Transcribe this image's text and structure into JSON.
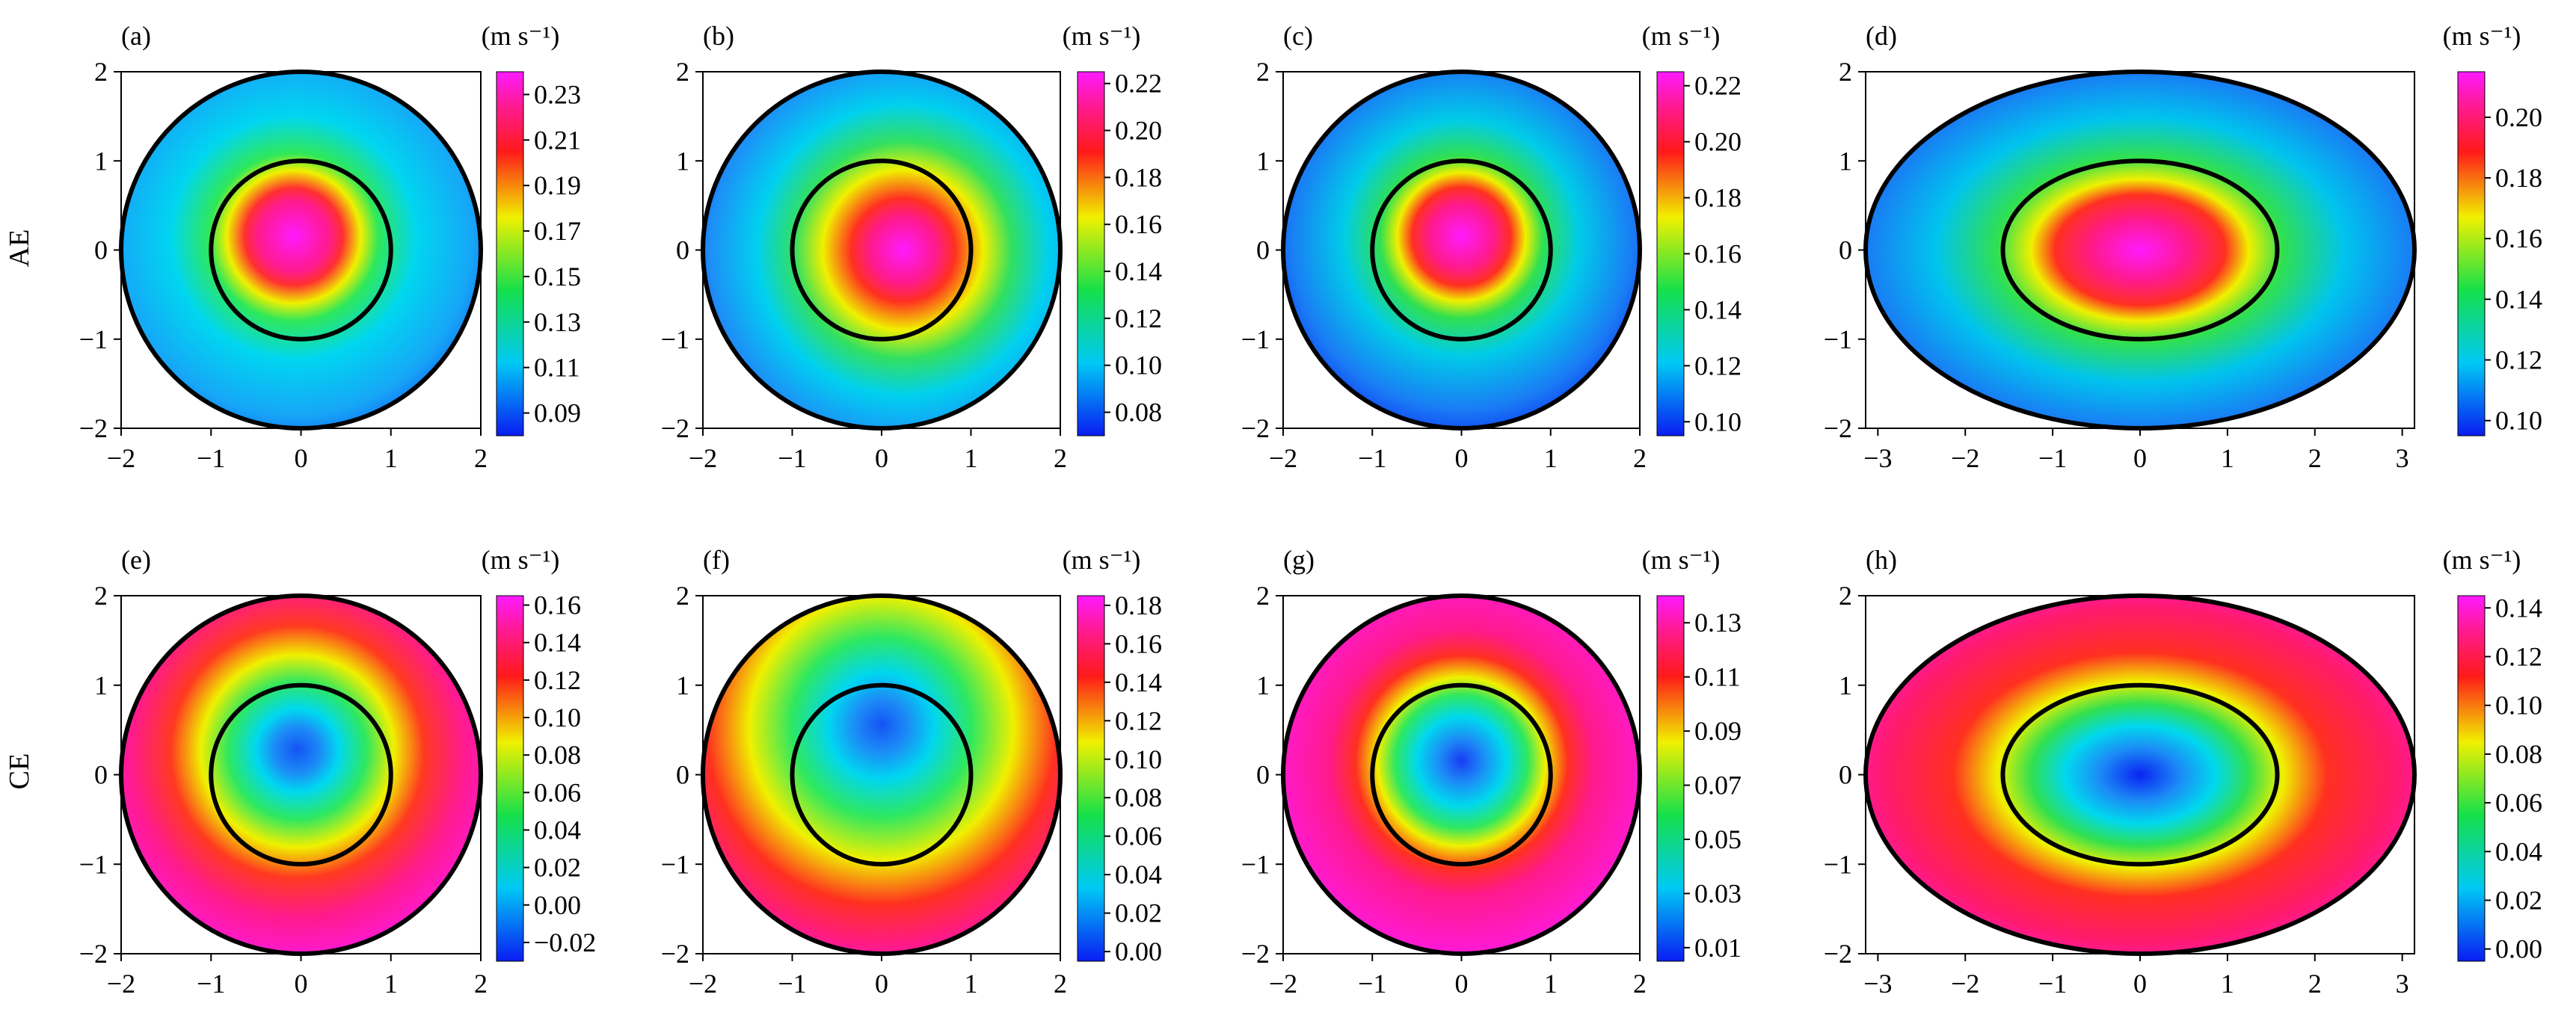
{
  "row_labels": [
    "AE",
    "CE"
  ],
  "colorbar_unit": "(m s⁻¹)",
  "chart_data": [
    {
      "type": "heatmap",
      "panel_label": "(a)",
      "row": 0,
      "shape": "circle",
      "xlim": [
        -2,
        2
      ],
      "ylim": [
        -2,
        2
      ],
      "xticks": [
        "−2",
        "−1",
        "0",
        "1",
        "2"
      ],
      "yticks": [
        "−2",
        "−1",
        "0",
        "1",
        "2"
      ],
      "colorbar_ticks": [
        "0.09",
        "0.11",
        "0.13",
        "0.15",
        "0.17",
        "0.19",
        "0.21",
        "0.23"
      ],
      "colorbar_range": [
        0.08,
        0.24
      ],
      "max_location": [
        -0.1,
        0.1
      ],
      "note": "max inside unit circle; min at lower-right edge"
    },
    {
      "type": "heatmap",
      "panel_label": "(b)",
      "row": 0,
      "shape": "circle",
      "xlim": [
        -2,
        2
      ],
      "ylim": [
        -2,
        2
      ],
      "xticks": [
        "−2",
        "−1",
        "0",
        "1",
        "2"
      ],
      "yticks": [
        "−2",
        "−1",
        "0",
        "1",
        "2"
      ],
      "colorbar_ticks": [
        "0.08",
        "0.10",
        "0.12",
        "0.14",
        "0.16",
        "0.18",
        "0.20",
        "0.22"
      ],
      "colorbar_range": [
        0.07,
        0.225
      ],
      "max_location": [
        0.2,
        0
      ],
      "note": "max at center; tail toward +x; min at upper-left edge"
    },
    {
      "type": "heatmap",
      "panel_label": "(c)",
      "row": 0,
      "shape": "circle",
      "xlim": [
        -2,
        2
      ],
      "ylim": [
        -2,
        2
      ],
      "xticks": [
        "−2",
        "−1",
        "0",
        "1",
        "2"
      ],
      "yticks": [
        "−2",
        "−1",
        "0",
        "1",
        "2"
      ],
      "colorbar_ticks": [
        "0.10",
        "0.12",
        "0.14",
        "0.16",
        "0.18",
        "0.20",
        "0.22"
      ],
      "colorbar_range": [
        0.095,
        0.225
      ],
      "max_location": [
        0,
        0.1
      ],
      "note": "concentric decrease; min near bottom edge"
    },
    {
      "type": "heatmap",
      "panel_label": "(d)",
      "row": 0,
      "shape": "ellipse",
      "xlim": [
        -3.14,
        3.14
      ],
      "ylim": [
        -2,
        2
      ],
      "xticks": [
        "−3",
        "−2",
        "−1",
        "0",
        "1",
        "2",
        "3"
      ],
      "yticks": [
        "−2",
        "−1",
        "0",
        "1",
        "2"
      ],
      "colorbar_ticks": [
        "0.10",
        "0.12",
        "0.14",
        "0.16",
        "0.18",
        "0.20"
      ],
      "colorbar_range": [
        0.095,
        0.215
      ],
      "max_location": [
        0,
        0
      ],
      "note": "max elongated along x; min at top and bottom"
    },
    {
      "type": "heatmap",
      "panel_label": "(e)",
      "row": 1,
      "shape": "circle",
      "xlim": [
        -2,
        2
      ],
      "ylim": [
        -2,
        2
      ],
      "xticks": [
        "−2",
        "−1",
        "0",
        "1",
        "2"
      ],
      "yticks": [
        "−2",
        "−1",
        "0",
        "1",
        "2"
      ],
      "colorbar_ticks": [
        "−0.02",
        "0.00",
        "0.02",
        "0.04",
        "0.06",
        "0.08",
        "0.10",
        "0.12",
        "0.14",
        "0.16"
      ],
      "colorbar_range": [
        -0.03,
        0.165
      ],
      "min_location": [
        0,
        0.2
      ],
      "note": "min inside unit circle; max at lower-right edge"
    },
    {
      "type": "heatmap",
      "panel_label": "(f)",
      "row": 1,
      "shape": "circle",
      "xlim": [
        -2,
        2
      ],
      "ylim": [
        -2,
        2
      ],
      "xticks": [
        "−2",
        "−1",
        "0",
        "1",
        "2"
      ],
      "yticks": [
        "−2",
        "−1",
        "0",
        "1",
        "2"
      ],
      "colorbar_ticks": [
        "0.00",
        "0.02",
        "0.04",
        "0.06",
        "0.08",
        "0.10",
        "0.12",
        "0.14",
        "0.16",
        "0.18"
      ],
      "colorbar_range": [
        -0.005,
        0.185
      ],
      "min_location": [
        0,
        0.5
      ],
      "note": "min near top center; max at lower-right edge"
    },
    {
      "type": "heatmap",
      "panel_label": "(g)",
      "row": 1,
      "shape": "circle",
      "xlim": [
        -2,
        2
      ],
      "ylim": [
        -2,
        2
      ],
      "xticks": [
        "−2",
        "−1",
        "0",
        "1",
        "2"
      ],
      "yticks": [
        "−2",
        "−1",
        "0",
        "1",
        "2"
      ],
      "colorbar_ticks": [
        "0.01",
        "0.03",
        "0.05",
        "0.07",
        "0.09",
        "0.11",
        "0.13"
      ],
      "colorbar_range": [
        0.005,
        0.14
      ],
      "min_location": [
        0,
        0.1
      ],
      "note": "concentric increase outward"
    },
    {
      "type": "heatmap",
      "panel_label": "(h)",
      "row": 1,
      "shape": "ellipse",
      "xlim": [
        -3.14,
        3.14
      ],
      "ylim": [
        -2,
        2
      ],
      "xticks": [
        "−3",
        "−2",
        "−1",
        "0",
        "1",
        "2",
        "3"
      ],
      "yticks": [
        "−2",
        "−1",
        "0",
        "1",
        "2"
      ],
      "colorbar_ticks": [
        "0.00",
        "0.02",
        "0.04",
        "0.06",
        "0.08",
        "0.10",
        "0.12",
        "0.14"
      ],
      "colorbar_range": [
        -0.005,
        0.145
      ],
      "min_location": [
        0,
        0
      ],
      "note": "min at center; max at top, bottom and left edge"
    }
  ]
}
